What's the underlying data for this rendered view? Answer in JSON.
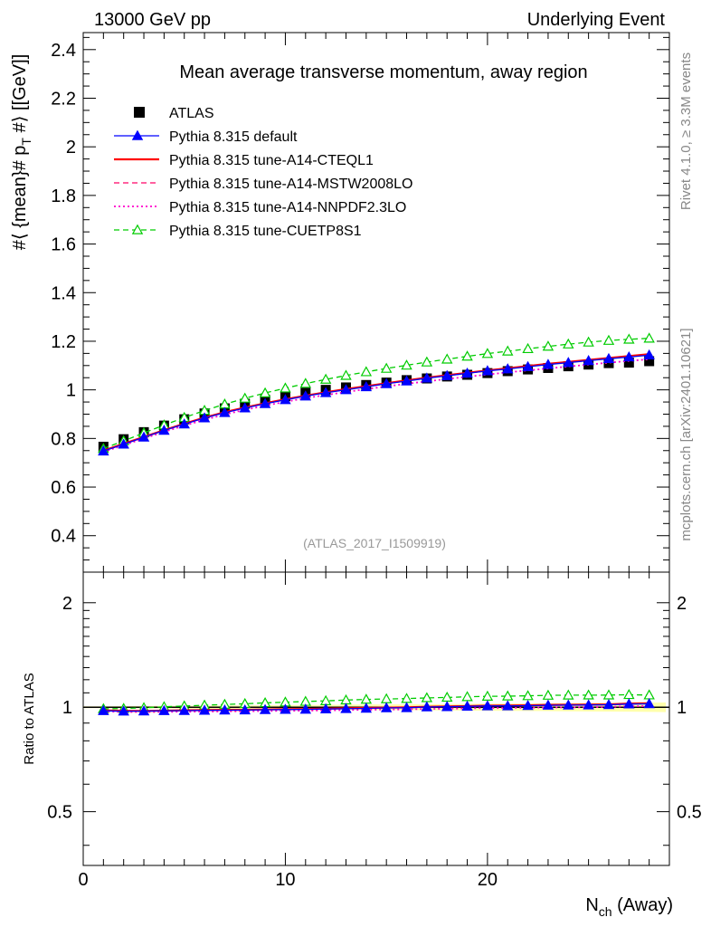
{
  "header": {
    "left": "13000 GeV pp",
    "right": "Underlying Event"
  },
  "side": {
    "rivet": "Rivet 4.1.0, ≥ 3.3M events",
    "mcplots": "mcplots.cern.ch [arXiv:2401.10621]"
  },
  "chart_data": {
    "type": "scatter",
    "title": "Mean average transverse momentum, away region",
    "watermark": "(ATLAS_2017_I1509919)",
    "ylabel": "#⟨ {mean}# p_T #⟩ [[GeV]]",
    "ylabel_main": "#⟨ {mean}# p",
    "ylabel_sub": "T",
    "ylabel_tail": " #⟩ [[GeV]]",
    "ratio_ylabel": "Ratio to ATLAS",
    "xlabel_main": "N",
    "xlabel_sub": "ch",
    "xlabel_tail": " (Away)",
    "xlim": [
      0,
      29
    ],
    "ylim": [
      0.25,
      2.47
    ],
    "ratio_ylim": [
      0.35,
      2.45
    ],
    "x_ticks": [
      0,
      10,
      20
    ],
    "y_ticks": [
      "0.4",
      "0.6",
      "0.8",
      "1",
      "1.2",
      "1.4",
      "1.6",
      "1.8",
      "2",
      "2.2",
      "2.4"
    ],
    "ratio_ticks": [
      "0.5",
      "1",
      "2"
    ],
    "x": [
      1,
      2,
      3,
      4,
      5,
      6,
      7,
      8,
      9,
      10,
      11,
      12,
      13,
      14,
      15,
      16,
      17,
      18,
      19,
      20,
      21,
      22,
      23,
      24,
      25,
      26,
      27,
      28
    ],
    "data": {
      "name": "ATLAS",
      "values": [
        0.766,
        0.797,
        0.826,
        0.853,
        0.879,
        0.903,
        0.924,
        0.943,
        0.959,
        0.974,
        0.988,
        1.0,
        1.01,
        1.02,
        1.03,
        1.04,
        1.047,
        1.055,
        1.062,
        1.069,
        1.077,
        1.084,
        1.09,
        1.097,
        1.104,
        1.11,
        1.112,
        1.118
      ],
      "color": "#000000"
    },
    "series": [
      {
        "name": "Pythia 8.315 default",
        "color": "#0000ff",
        "style": "solid",
        "marker": "triangle",
        "values": [
          0.748,
          0.776,
          0.805,
          0.833,
          0.859,
          0.884,
          0.906,
          0.925,
          0.943,
          0.959,
          0.974,
          0.988,
          1.0,
          1.012,
          1.025,
          1.036,
          1.048,
          1.058,
          1.068,
          1.078,
          1.086,
          1.095,
          1.104,
          1.112,
          1.12,
          1.128,
          1.135,
          1.143
        ]
      },
      {
        "name": "Pythia 8.315 tune-A14-CTEQL1",
        "color": "#ff0000",
        "style": "solid",
        "marker": "none",
        "values": [
          0.75,
          0.778,
          0.806,
          0.834,
          0.861,
          0.886,
          0.908,
          0.927,
          0.945,
          0.961,
          0.976,
          0.99,
          1.003,
          1.015,
          1.027,
          1.039,
          1.05,
          1.06,
          1.07,
          1.08,
          1.089,
          1.098,
          1.107,
          1.115,
          1.123,
          1.131,
          1.139,
          1.147
        ]
      },
      {
        "name": "Pythia 8.315 tune-A14-MSTW2008LO",
        "color": "#ff0066",
        "style": "dashed",
        "marker": "none",
        "values": [
          0.749,
          0.777,
          0.805,
          0.833,
          0.86,
          0.885,
          0.907,
          0.926,
          0.944,
          0.96,
          0.975,
          0.989,
          1.002,
          1.014,
          1.026,
          1.038,
          1.049,
          1.059,
          1.069,
          1.079,
          1.088,
          1.097,
          1.106,
          1.114,
          1.122,
          1.13,
          1.138,
          1.146
        ]
      },
      {
        "name": "Pythia 8.315 tune-A14-NNPDF2.3LO",
        "color": "#ff00cc",
        "style": "dotted",
        "marker": "none",
        "values": [
          0.745,
          0.772,
          0.8,
          0.827,
          0.853,
          0.877,
          0.899,
          0.918,
          0.935,
          0.951,
          0.966,
          0.979,
          0.991,
          1.003,
          1.014,
          1.025,
          1.035,
          1.045,
          1.054,
          1.063,
          1.072,
          1.08,
          1.088,
          1.096,
          1.104,
          1.112,
          1.119,
          1.126
        ]
      },
      {
        "name": "Pythia 8.315 tune-CUETP8S1",
        "color": "#00cc00",
        "style": "dashed",
        "marker": "open-triangle",
        "values": [
          0.758,
          0.79,
          0.823,
          0.855,
          0.886,
          0.915,
          0.941,
          0.965,
          0.987,
          1.007,
          1.026,
          1.043,
          1.059,
          1.074,
          1.088,
          1.101,
          1.114,
          1.126,
          1.138,
          1.149,
          1.159,
          1.169,
          1.179,
          1.188,
          1.196,
          1.203,
          1.208,
          1.212
        ]
      }
    ]
  }
}
